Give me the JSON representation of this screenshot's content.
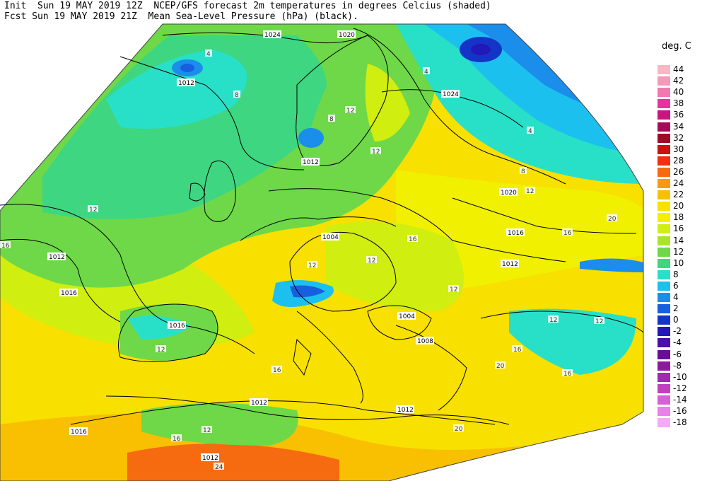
{
  "header": {
    "line1": "Init  Sun 19 MAY 2019 12Z  NCEP/GFS forecast 2m temperatures in degrees Celcius (shaded)",
    "line2": "Fcst Sun 19 MAY 2019 21Z  Mean Sea-Level Pressure (hPa) (black)."
  },
  "legend": {
    "title": "deg. C",
    "levels": [
      {
        "label": "44",
        "color": "#f7b8c4"
      },
      {
        "label": "42",
        "color": "#f49ab8"
      },
      {
        "label": "40",
        "color": "#f279b0"
      },
      {
        "label": "38",
        "color": "#e8339f"
      },
      {
        "label": "36",
        "color": "#c8157f"
      },
      {
        "label": "34",
        "color": "#a80a5a"
      },
      {
        "label": "32",
        "color": "#a00a28"
      },
      {
        "label": "30",
        "color": "#d01010"
      },
      {
        "label": "28",
        "color": "#f03010"
      },
      {
        "label": "26",
        "color": "#f66a10"
      },
      {
        "label": "24",
        "color": "#f89a10"
      },
      {
        "label": "22",
        "color": "#f8c000"
      },
      {
        "label": "20",
        "color": "#f8e000"
      },
      {
        "label": "18",
        "color": "#f0f000"
      },
      {
        "label": "16",
        "color": "#d0ee10"
      },
      {
        "label": "14",
        "color": "#aae42a"
      },
      {
        "label": "12",
        "color": "#6ed848"
      },
      {
        "label": "10",
        "color": "#3ed680"
      },
      {
        "label": "8",
        "color": "#28e0c8"
      },
      {
        "label": "6",
        "color": "#1cc0ee"
      },
      {
        "label": "4",
        "color": "#1a8eea"
      },
      {
        "label": "2",
        "color": "#1660e0"
      },
      {
        "label": "0",
        "color": "#1434c8"
      },
      {
        "label": "-2",
        "color": "#2218b8"
      },
      {
        "label": "-4",
        "color": "#4a10a8"
      },
      {
        "label": "-6",
        "color": "#6a0c98"
      },
      {
        "label": "-8",
        "color": "#8a1a98"
      },
      {
        "label": "-10",
        "color": "#a02aa8"
      },
      {
        "label": "-12",
        "color": "#c040c0"
      },
      {
        "label": "-14",
        "color": "#d860d8"
      },
      {
        "label": "-16",
        "color": "#ea80ea"
      },
      {
        "label": "-18",
        "color": "#f7a8f7"
      }
    ]
  },
  "isobar_labels": [
    "1024",
    "1020",
    "1016",
    "1012",
    "1008",
    "1004"
  ],
  "temp_labels": [
    "4",
    "8",
    "12",
    "16",
    "20",
    "24"
  ]
}
